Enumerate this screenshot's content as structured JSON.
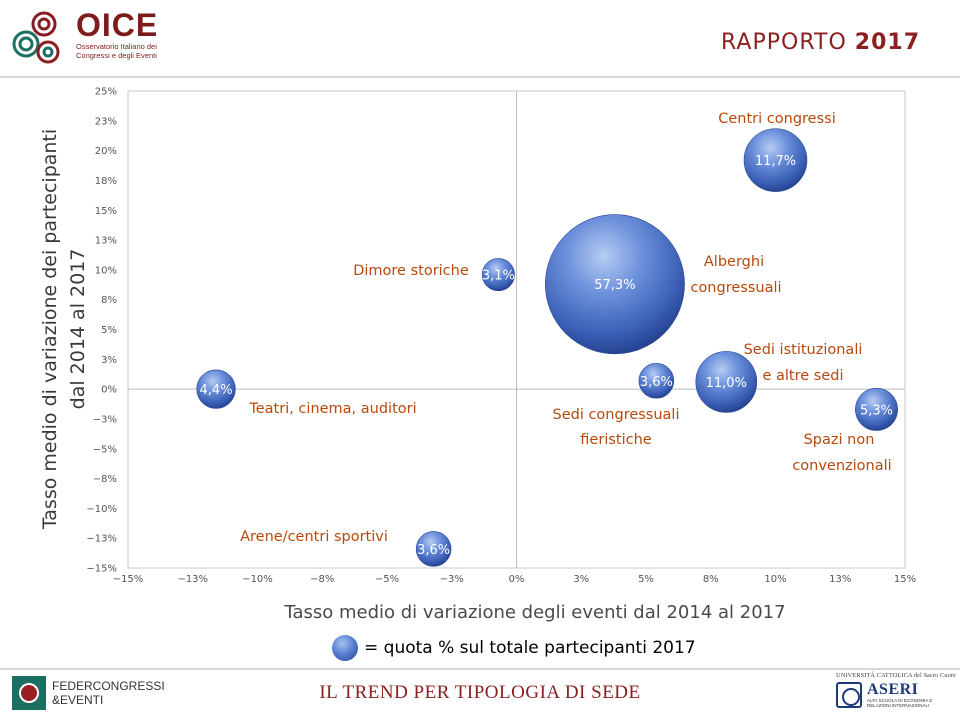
{
  "header": {
    "logo_name": "OICE",
    "logo_sub_1": "Osservatorio Italiano dei",
    "logo_sub_2": "Congressi e degli Eventi",
    "report_word": "RAPPORTO",
    "report_year": "2017",
    "brand_color": "#7d1c1c"
  },
  "chart_data": {
    "type": "scatter",
    "subtype": "bubble",
    "xlabel": "Tasso medio di variazione degli eventi dal 2014 al 2017",
    "ylabel_line1": "Tasso medio di variazione dei partecipanti",
    "ylabel_line2": "dal 2014 al 2017",
    "xlim": [
      -15,
      15
    ],
    "ylim": [
      -15,
      25
    ],
    "x_ticks": [
      "−15%",
      "−13%",
      "−10%",
      "−8%",
      "−5%",
      "−3%",
      "0%",
      "3%",
      "5%",
      "8%",
      "10%",
      "13%",
      "15%"
    ],
    "y_ticks": [
      "25%",
      "23%",
      "20%",
      "18%",
      "15%",
      "13%",
      "10%",
      "8%",
      "5%",
      "3%",
      "0%",
      "−3%",
      "−5%",
      "−8%",
      "−10%",
      "−13%",
      "−15%"
    ],
    "grid": false,
    "label_color": "#b8480c",
    "bubble_color": "#4a72c8",
    "points": [
      {
        "category": "Centri congressi",
        "x": 10.0,
        "y": 19.2,
        "share": 11.7,
        "bubble_label": "11,7%"
      },
      {
        "category": "Alberghi congressuali",
        "x": 3.8,
        "y": 8.8,
        "share": 57.3,
        "bubble_label": "57,3%"
      },
      {
        "category": "Dimore storiche",
        "x": -0.7,
        "y": 9.6,
        "share": 3.1,
        "bubble_label": "3,1%"
      },
      {
        "category": "Teatri, cinema, auditori",
        "x": -11.6,
        "y": 0.0,
        "share": 4.4,
        "bubble_label": "4,4%"
      },
      {
        "category": "Sedi congressuali fieristiche",
        "x": 5.4,
        "y": 0.7,
        "share": 3.6,
        "bubble_label": "3,6%"
      },
      {
        "category": "Sedi istituzionali e altre sedi",
        "x": 8.1,
        "y": 0.6,
        "share": 11.0,
        "bubble_label": "11,0%"
      },
      {
        "category": "Spazi non convenzionali",
        "x": 13.9,
        "y": -1.7,
        "share": 5.3,
        "bubble_label": "5,3%"
      },
      {
        "category": "Arene/centri sportivi",
        "x": -3.2,
        "y": -13.4,
        "share": 3.6,
        "bubble_label": "3,6%"
      }
    ],
    "legend": "= quota % sul totale partecipanti 2017"
  },
  "footer": {
    "fed_line1": "FEDERCONGRESSI",
    "fed_line2": "&EVENTI",
    "title": "IL TREND PER TIPOLOGIA DI SEDE",
    "aseri_top": "UNIVERSITÀ CATTOLICA del Sacro Cuore",
    "aseri_name": "ASERI",
    "aseri_sub": "ALTA SCUOLA DI ECONOMIA E RELAZIONI INTERNAZIONALI"
  }
}
